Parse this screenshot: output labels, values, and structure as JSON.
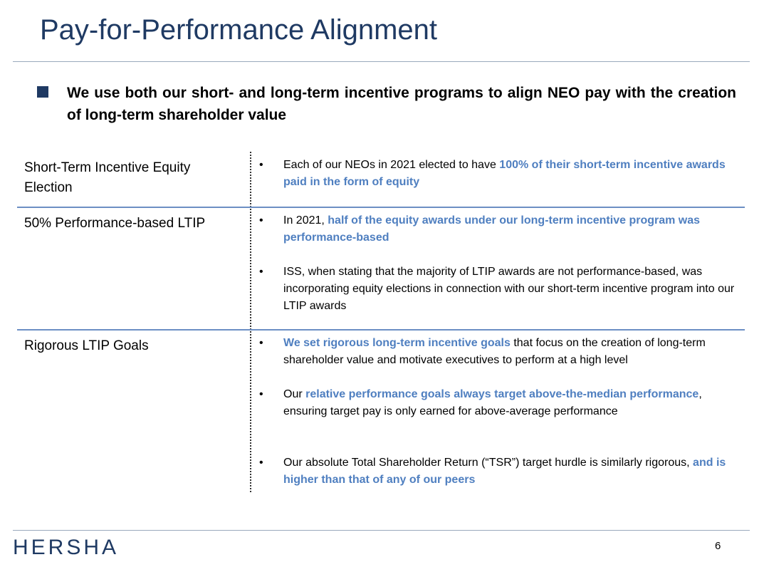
{
  "header": {
    "title": "Pay-for-Performance Alignment"
  },
  "summary": "We use both our short- and long-term incentive programs to align NEO pay with the creation of long-term shareholder value",
  "table": {
    "rows": [
      {
        "label": "Short-Term Incentive Equity Election",
        "bullets": [
          [
            {
              "text": "Each of our NEOs in 2021 elected to have "
            },
            {
              "text": "100% of their short-term incentive awards paid in the form of equity",
              "highlight": true
            }
          ]
        ]
      },
      {
        "label": "50% Performance-based LTIP",
        "bullets": [
          [
            {
              "text": "In 2021, "
            },
            {
              "text": "half of the equity awards under our long-term incentive program was performance-based",
              "highlight": true
            }
          ],
          [
            {
              "text": "ISS, when stating that the majority of LTIP awards are not performance-based, was incorporating equity elections in connection with our short-term incentive program into our LTIP awards"
            }
          ]
        ]
      },
      {
        "label": "Rigorous LTIP Goals",
        "bullets": [
          [
            {
              "text": "We set rigorous long-term incentive goals",
              "highlight": true
            },
            {
              "text": " that focus on the creation of long-term shareholder value and motivate executives to perform at a high level"
            }
          ],
          [
            {
              "text": "Our "
            },
            {
              "text": "relative performance goals always target above-the-median performance",
              "highlight": true
            },
            {
              "text": ", ensuring target pay is only earned for above-average performance"
            }
          ],
          [
            {
              "text": "Our absolute Total Shareholder Return (“TSR”) target hurdle is similarly rigorous, "
            },
            {
              "text": "and is higher than that of any of our peers",
              "highlight": true
            }
          ]
        ]
      }
    ]
  },
  "footer": {
    "logo": "HERSHA",
    "page_number": "6"
  }
}
